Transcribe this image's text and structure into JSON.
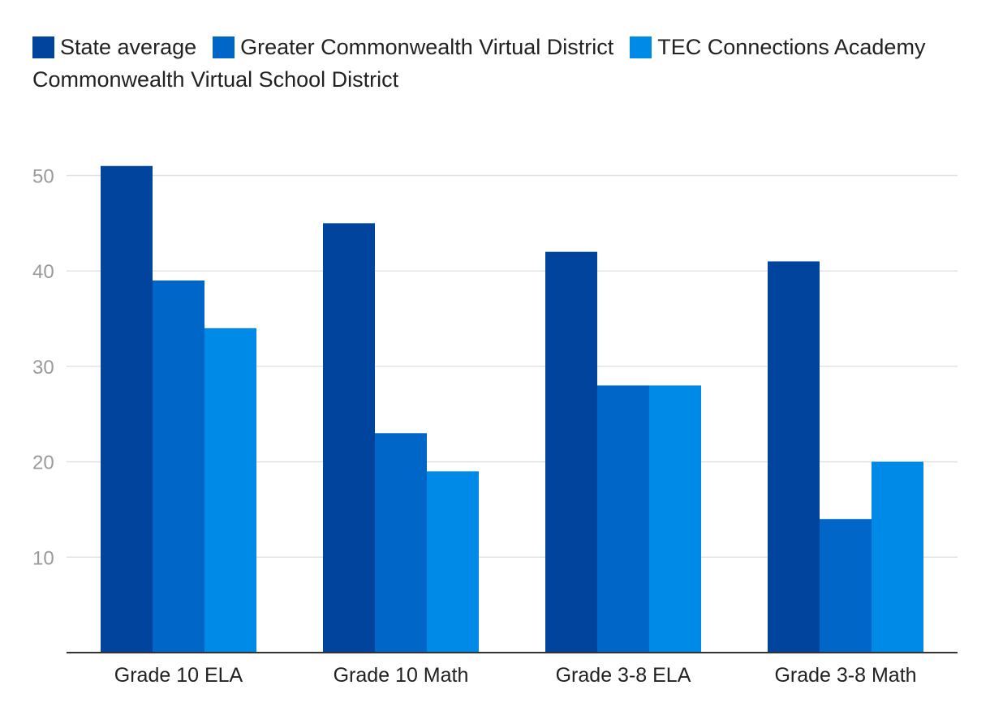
{
  "chart_data": {
    "type": "bar",
    "title": "",
    "xlabel": "",
    "ylabel": "",
    "categories": [
      "Grade 10 ELA",
      "Grade 10 Math",
      "Grade 3-8 ELA",
      "Grade 3-8 Math"
    ],
    "series": [
      {
        "name": "State average",
        "values": [
          51,
          45,
          42,
          41
        ],
        "color": "#00449e"
      },
      {
        "name": "Greater Commonwealth Virtual District",
        "values": [
          39,
          23,
          28,
          14
        ],
        "color": "#0066c8"
      },
      {
        "name": "TEC Connections Academy",
        "values": [
          34,
          19,
          28,
          20
        ],
        "color": "#008ae8"
      },
      {
        "name": "Commonwealth Virtual School District",
        "values": [
          null,
          null,
          null,
          null
        ],
        "color": "#00449e"
      }
    ],
    "yticks": [
      10,
      20,
      30,
      40,
      50
    ],
    "ylim": [
      0,
      53
    ],
    "grid": true,
    "legend": "top-left"
  }
}
